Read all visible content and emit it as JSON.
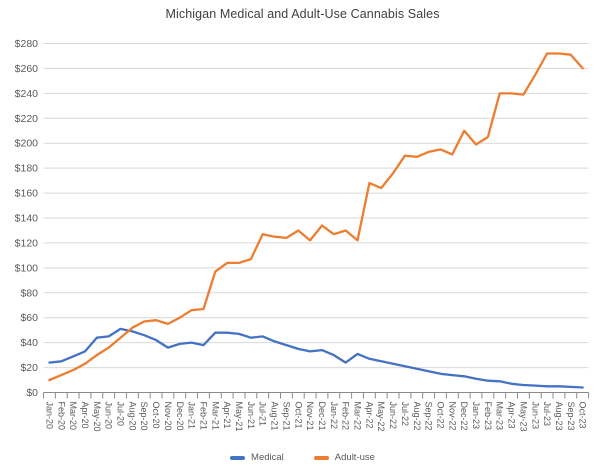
{
  "title": "Michigan Medical and Adult-Use Cannabis Sales",
  "chart_data": {
    "type": "line",
    "title": "Michigan Medical and Adult-Use Cannabis Sales",
    "x_labels": [
      "Jan-20",
      "Feb-20",
      "Mar-20",
      "Apr-20",
      "May-20",
      "Jun-20",
      "Jul-20",
      "Aug-20",
      "Sep-20",
      "Oct-20",
      "Nov-20",
      "Dec-20",
      "Jan-21",
      "Feb-21",
      "Mar-21",
      "Apr-21",
      "May-21",
      "Jun-21",
      "Jul-21",
      "Aug-21",
      "Sep-21",
      "Oct-21",
      "Nov-21",
      "Dec-21",
      "Jan-22",
      "Feb-22",
      "Mar-22",
      "Apr-22",
      "May-22",
      "Jun-22",
      "Jul-22",
      "Aug-22",
      "Sep-22",
      "Oct-22",
      "Nov-22",
      "Dec-22",
      "Jan-23",
      "Feb-23",
      "Mar-23",
      "Apr-23",
      "May-23",
      "Jun-23",
      "Jul-23",
      "Aug-23",
      "Sep-23",
      "Oct-23"
    ],
    "series": [
      {
        "name": "Medical",
        "color": "#4472C4",
        "values": [
          24,
          25,
          29,
          33,
          44,
          45,
          51,
          49,
          46,
          42,
          36,
          39,
          40,
          38,
          48,
          48,
          47,
          44,
          45,
          41,
          38,
          35,
          33,
          34,
          30,
          24,
          31,
          27,
          25,
          23,
          21,
          19,
          17,
          15,
          14,
          13,
          11,
          9.5,
          9,
          7,
          6,
          5.5,
          5,
          5,
          4.5,
          4
        ]
      },
      {
        "name": "Adult-use",
        "color": "#ED7D31",
        "values": [
          10,
          14,
          18,
          23,
          30,
          36,
          44,
          52,
          57,
          58,
          55,
          60,
          66,
          67,
          97,
          104,
          104,
          107,
          127,
          125,
          124,
          130,
          122,
          134,
          127,
          130,
          122,
          168,
          164,
          176,
          190,
          189,
          193,
          195,
          191,
          210,
          199,
          205,
          240,
          240,
          239,
          255,
          272,
          272,
          271,
          260
        ]
      }
    ],
    "y_axis": {
      "min": 0,
      "max": 280,
      "step": 20,
      "tick_labels": [
        "$0",
        "$20",
        "$40",
        "$60",
        "$80",
        "$100",
        "$120",
        "$140",
        "$160",
        "$180",
        "$200",
        "$220",
        "$240",
        "$260",
        "$280"
      ]
    },
    "grid": true,
    "legend_position": "bottom",
    "styles": {
      "gridline_color": "#D9D9D9",
      "axis_color": "#898989",
      "tick_color": "#898989",
      "label_color": "#595959",
      "title_color": "#404040",
      "background": "#FFFFFF"
    }
  }
}
